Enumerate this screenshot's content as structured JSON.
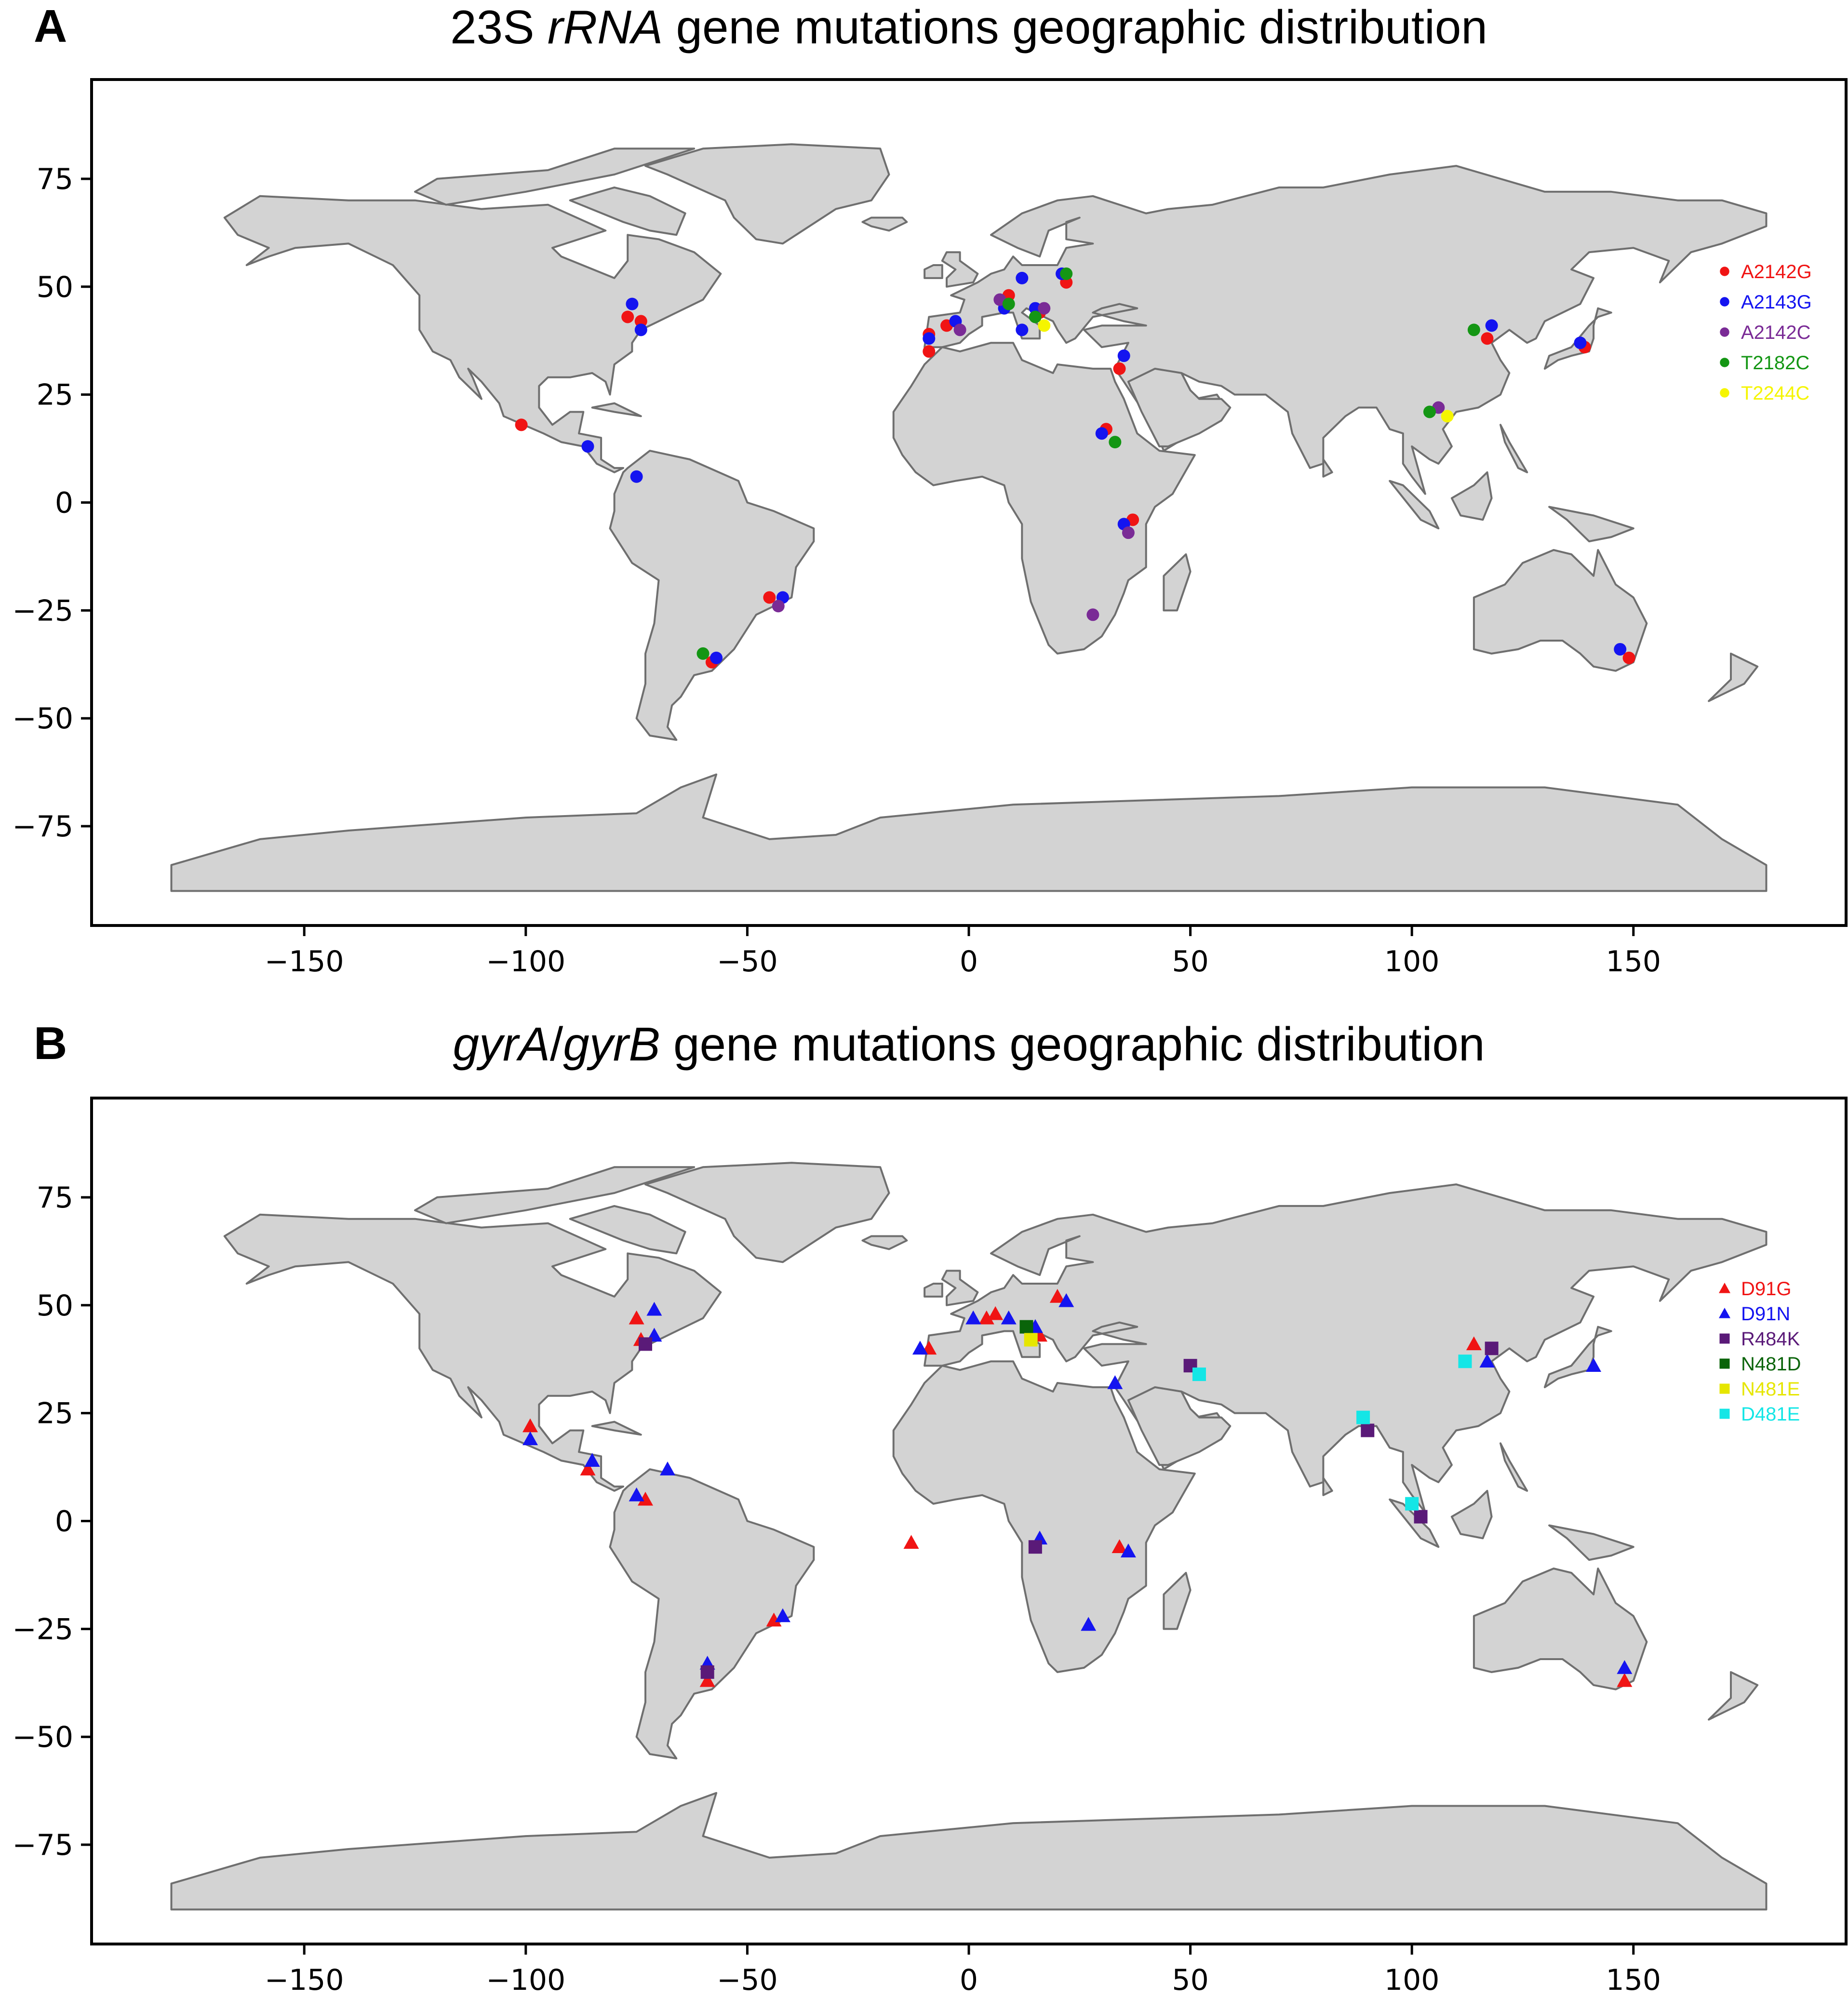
{
  "colors": {
    "red": "#f01414",
    "blue": "#1414f0",
    "purple": "#7a2b96",
    "green": "#149614",
    "yellow": "#f5f500",
    "darkpurple": "#5a1a78",
    "darkgreen": "#0a640a",
    "yellow2": "#e6e600",
    "cyan": "#14e6e6",
    "land": "#d3d3d3",
    "coast": "#6f6f6f"
  },
  "panel_a": {
    "letter": "A",
    "title_parts": [
      "23S ",
      "rRNA",
      " gene mutations geographic distribution"
    ]
  },
  "panel_b": {
    "letter": "B",
    "title_parts": [
      "gyrA",
      "/",
      "gyrB",
      " gene mutations geographic distribution"
    ]
  },
  "chart_data": [
    {
      "type": "scatter",
      "title": "23S rRNA gene mutations geographic distribution",
      "xlabel": "",
      "ylabel": "",
      "xlim": [
        -198,
        198
      ],
      "ylim": [
        -98,
        98
      ],
      "xticks": [
        -150,
        -100,
        -50,
        0,
        50,
        100,
        150
      ],
      "yticks": [
        75,
        50,
        25,
        0,
        -25,
        -50,
        -75
      ],
      "legend_position": "right",
      "series": [
        {
          "name": "A2142G",
          "marker": "circle",
          "color": "red",
          "points": [
            [
              -77,
              43
            ],
            [
              -74,
              42
            ],
            [
              -101,
              18
            ],
            [
              -9,
              39
            ],
            [
              -9,
              35
            ],
            [
              -5,
              41
            ],
            [
              9,
              48
            ],
            [
              16,
              44
            ],
            [
              22,
              51
            ],
            [
              34,
              31
            ],
            [
              31,
              17
            ],
            [
              37,
              -4
            ],
            [
              -45,
              -22
            ],
            [
              -58,
              -37
            ],
            [
              117,
              38
            ],
            [
              139,
              36
            ],
            [
              149,
              -36
            ]
          ]
        },
        {
          "name": "A2143G",
          "marker": "circle",
          "color": "blue",
          "points": [
            [
              -76,
              46
            ],
            [
              -74,
              40
            ],
            [
              -86,
              13
            ],
            [
              -75,
              6
            ],
            [
              -9,
              38
            ],
            [
              -3,
              42
            ],
            [
              8,
              45
            ],
            [
              12,
              40
            ],
            [
              15,
              45
            ],
            [
              12,
              52
            ],
            [
              21,
              53
            ],
            [
              35,
              34
            ],
            [
              30,
              16
            ],
            [
              35,
              -5
            ],
            [
              -42,
              -22
            ],
            [
              -57,
              -36
            ],
            [
              118,
              41
            ],
            [
              138,
              37
            ],
            [
              147,
              -34
            ]
          ]
        },
        {
          "name": "A2142C",
          "marker": "circle",
          "color": "purple",
          "points": [
            [
              -2,
              40
            ],
            [
              7,
              47
            ],
            [
              17,
              45
            ],
            [
              36,
              -7
            ],
            [
              28,
              -26
            ],
            [
              -43,
              -24
            ],
            [
              106,
              22
            ]
          ]
        },
        {
          "name": "T2182C",
          "marker": "circle",
          "color": "green",
          "points": [
            [
              9,
              46
            ],
            [
              15,
              43
            ],
            [
              22,
              53
            ],
            [
              33,
              14
            ],
            [
              -60,
              -35
            ],
            [
              114,
              40
            ],
            [
              104,
              21
            ]
          ]
        },
        {
          "name": "T2244C",
          "marker": "circle",
          "color": "yellow",
          "points": [
            [
              17,
              41
            ],
            [
              108,
              20
            ]
          ]
        }
      ]
    },
    {
      "type": "scatter",
      "title": "gyrA/gyrB gene mutations geographic distribution",
      "xlabel": "",
      "ylabel": "",
      "xlim": [
        -198,
        198
      ],
      "ylim": [
        -98,
        98
      ],
      "xticks": [
        -150,
        -100,
        -50,
        0,
        50,
        100,
        150
      ],
      "yticks": [
        75,
        50,
        25,
        0,
        -25,
        -50,
        -75
      ],
      "legend_position": "right",
      "series": [
        {
          "name": "D91G",
          "marker": "triangle",
          "color": "red",
          "points": [
            [
              -75,
              47
            ],
            [
              -74,
              42
            ],
            [
              -99,
              22
            ],
            [
              -86,
              12
            ],
            [
              -73,
              5
            ],
            [
              -9,
              40
            ],
            [
              4,
              47
            ],
            [
              6,
              48
            ],
            [
              16,
              43
            ],
            [
              20,
              52
            ],
            [
              -13,
              -5
            ],
            [
              34,
              -6
            ],
            [
              -59,
              -37
            ],
            [
              -44,
              -23
            ],
            [
              114,
              41
            ],
            [
              148,
              -37
            ]
          ]
        },
        {
          "name": "D91N",
          "marker": "triangle",
          "color": "blue",
          "points": [
            [
              -71,
              49
            ],
            [
              -71,
              43
            ],
            [
              -99,
              19
            ],
            [
              -85,
              14
            ],
            [
              -75,
              6
            ],
            [
              -68,
              12
            ],
            [
              -11,
              40
            ],
            [
              1,
              47
            ],
            [
              9,
              47
            ],
            [
              15,
              45
            ],
            [
              22,
              51
            ],
            [
              33,
              32
            ],
            [
              16,
              -4
            ],
            [
              36,
              -7
            ],
            [
              27,
              -24
            ],
            [
              -42,
              -22
            ],
            [
              -59,
              -33
            ],
            [
              117,
              37
            ],
            [
              141,
              36
            ],
            [
              148,
              -34
            ]
          ]
        },
        {
          "name": "R484K",
          "marker": "square",
          "color": "darkpurple",
          "points": [
            [
              -73,
              41
            ],
            [
              15,
              -6
            ],
            [
              50,
              36
            ],
            [
              118,
              40
            ],
            [
              90,
              21
            ],
            [
              102,
              1
            ],
            [
              -59,
              -35
            ]
          ]
        },
        {
          "name": "N481D",
          "marker": "square",
          "color": "darkgreen",
          "points": [
            [
              13,
              45
            ]
          ]
        },
        {
          "name": "N481E",
          "marker": "square",
          "color": "yellow2",
          "points": [
            [
              14,
              42
            ]
          ]
        },
        {
          "name": "D481E",
          "marker": "square",
          "color": "cyan",
          "points": [
            [
              52,
              34
            ],
            [
              112,
              37
            ],
            [
              89,
              24
            ],
            [
              100,
              4
            ]
          ]
        }
      ]
    }
  ]
}
